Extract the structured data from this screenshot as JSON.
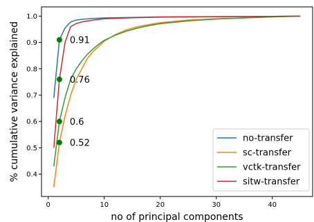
{
  "chart_data": {
    "type": "line",
    "title": "",
    "xlabel": "no of principal components",
    "ylabel": "% cumulative variance explained",
    "xlim": [
      -1.2,
      47.2
    ],
    "ylim": [
      0.315,
      1.035
    ],
    "xticks": [
      0,
      10,
      20,
      30,
      40
    ],
    "yticks": [
      0.4,
      0.5,
      0.6,
      0.7,
      0.8,
      0.9,
      1.0
    ],
    "xtick_labels": [
      "0",
      "10",
      "20",
      "30",
      "40"
    ],
    "ytick_labels": [
      "0.4",
      "0.5",
      "0.6",
      "0.7",
      "0.8",
      "0.9",
      "1.0"
    ],
    "grid": false,
    "legend_position": "lower-right",
    "series": [
      {
        "name": "no-transfer",
        "color": "#1f77b4",
        "x": [
          1,
          2,
          3,
          4,
          5,
          6,
          8,
          10,
          15,
          20,
          30,
          40,
          45
        ],
        "y": [
          0.69,
          0.91,
          0.955,
          0.978,
          0.985,
          0.988,
          0.991,
          0.993,
          0.995,
          0.997,
          0.998,
          0.999,
          1.0
        ]
      },
      {
        "name": "sc-transfer",
        "color": "#ff7f0e",
        "x": [
          1,
          2,
          3,
          4,
          5,
          6,
          7,
          8,
          9,
          10,
          12,
          14,
          16,
          18,
          20,
          25,
          30,
          35,
          40,
          45
        ],
        "y": [
          0.35,
          0.52,
          0.62,
          0.7,
          0.76,
          0.8,
          0.84,
          0.865,
          0.885,
          0.905,
          0.93,
          0.948,
          0.96,
          0.968,
          0.975,
          0.985,
          0.99,
          0.994,
          0.997,
          1.0
        ]
      },
      {
        "name": "vctk-transfer",
        "color": "#2ca02c",
        "x": [
          1,
          2,
          3,
          4,
          5,
          6,
          7,
          8,
          9,
          10,
          12,
          14,
          16,
          18,
          20,
          25,
          30,
          35,
          40,
          45
        ],
        "y": [
          0.43,
          0.6,
          0.69,
          0.76,
          0.8,
          0.83,
          0.855,
          0.875,
          0.893,
          0.908,
          0.928,
          0.943,
          0.955,
          0.964,
          0.971,
          0.982,
          0.989,
          0.993,
          0.997,
          1.0
        ]
      },
      {
        "name": "sitw-transfer",
        "color": "#d62728",
        "x": [
          1,
          2,
          3,
          4,
          5,
          6,
          8,
          10,
          15,
          20,
          30,
          40,
          45
        ],
        "y": [
          0.5,
          0.76,
          0.9,
          0.96,
          0.972,
          0.978,
          0.985,
          0.99,
          0.994,
          0.996,
          0.998,
          0.999,
          1.0
        ]
      }
    ],
    "markers": {
      "color": "#008000",
      "points": [
        {
          "x": 2,
          "y": 0.91,
          "label": "0.91"
        },
        {
          "x": 2,
          "y": 0.76,
          "label": "0.76"
        },
        {
          "x": 2,
          "y": 0.6,
          "label": "0.6"
        },
        {
          "x": 2,
          "y": 0.52,
          "label": "0.52"
        }
      ]
    }
  }
}
